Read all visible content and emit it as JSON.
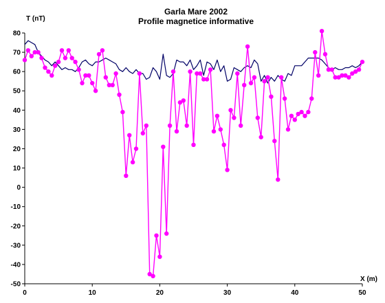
{
  "chart_data": {
    "type": "line",
    "title": "Garla Mare 2002",
    "subtitle": "Profile magnetice informative",
    "xlabel": "X (m)",
    "ylabel": "T (nT)",
    "xlim": [
      0,
      50
    ],
    "ylim": [
      -50,
      80
    ],
    "xticks": [
      0,
      10,
      20,
      30,
      40,
      50
    ],
    "yticks": [
      -50,
      -40,
      -30,
      -20,
      -10,
      0,
      10,
      20,
      30,
      40,
      50,
      60,
      70,
      80
    ],
    "grid": false,
    "colors": {
      "magenta": "#ff00ff",
      "navy": "#000066"
    },
    "series": [
      {
        "color": "#000066",
        "marker": "none",
        "points": [
          [
            0,
            74
          ],
          [
            0.5,
            76
          ],
          [
            1,
            75
          ],
          [
            1.5,
            74
          ],
          [
            2,
            70
          ],
          [
            2.5,
            68
          ],
          [
            3,
            66
          ],
          [
            3.5,
            65
          ],
          [
            4,
            63
          ],
          [
            4.5,
            65
          ],
          [
            5,
            63
          ],
          [
            5.5,
            61
          ],
          [
            6,
            62
          ],
          [
            6.5,
            61
          ],
          [
            7,
            61
          ],
          [
            7.5,
            60
          ],
          [
            8,
            62
          ],
          [
            8.5,
            65
          ],
          [
            9,
            66
          ],
          [
            9.5,
            64
          ],
          [
            10,
            63
          ],
          [
            10.5,
            65
          ],
          [
            11,
            65
          ],
          [
            11.5,
            66
          ],
          [
            12,
            67
          ],
          [
            12.5,
            66
          ],
          [
            13,
            65
          ],
          [
            13.5,
            64
          ],
          [
            14,
            61
          ],
          [
            14.5,
            60
          ],
          [
            15,
            62
          ],
          [
            15.5,
            60
          ],
          [
            16,
            59
          ],
          [
            16.5,
            61
          ],
          [
            17,
            59
          ],
          [
            17.5,
            59
          ],
          [
            18,
            56
          ],
          [
            18.5,
            57
          ],
          [
            19,
            62
          ],
          [
            19.5,
            60
          ],
          [
            20,
            56
          ],
          [
            20.5,
            69
          ],
          [
            21,
            58
          ],
          [
            21.5,
            57
          ],
          [
            22,
            59
          ],
          [
            22.5,
            66
          ],
          [
            23,
            65
          ],
          [
            23.5,
            65
          ],
          [
            24,
            63
          ],
          [
            24.5,
            66
          ],
          [
            25,
            61
          ],
          [
            25.5,
            63
          ],
          [
            26,
            66
          ],
          [
            26.5,
            58
          ],
          [
            27,
            65
          ],
          [
            27.5,
            64
          ],
          [
            28,
            61
          ],
          [
            28.5,
            66
          ],
          [
            29,
            60
          ],
          [
            29.5,
            63
          ],
          [
            30,
            55
          ],
          [
            30.5,
            56
          ],
          [
            31,
            62
          ],
          [
            31.5,
            61
          ],
          [
            32,
            60
          ],
          [
            32.5,
            62
          ],
          [
            33,
            63
          ],
          [
            33.5,
            62
          ],
          [
            34,
            66
          ],
          [
            34.5,
            64
          ],
          [
            35,
            55
          ],
          [
            35.5,
            58
          ],
          [
            36,
            54
          ],
          [
            36.5,
            57
          ],
          [
            37,
            55
          ],
          [
            37.5,
            58
          ],
          [
            38,
            56
          ],
          [
            38.5,
            55
          ],
          [
            39,
            59
          ],
          [
            39.5,
            58
          ],
          [
            40,
            63
          ],
          [
            40.5,
            63
          ],
          [
            41,
            63
          ],
          [
            41.5,
            65
          ],
          [
            42,
            67
          ],
          [
            42.5,
            67
          ],
          [
            43,
            67
          ],
          [
            43.5,
            67
          ],
          [
            44,
            66
          ],
          [
            44.5,
            64
          ],
          [
            45,
            62
          ],
          [
            45.5,
            61
          ],
          [
            46,
            62
          ],
          [
            46.5,
            61
          ],
          [
            47,
            61
          ],
          [
            47.5,
            62
          ],
          [
            48,
            62
          ],
          [
            48.5,
            63
          ],
          [
            49,
            62
          ],
          [
            49.5,
            63
          ],
          [
            50,
            65
          ]
        ]
      },
      {
        "color": "#ff00ff",
        "marker": "circle",
        "points": [
          [
            0,
            66
          ],
          [
            0.5,
            71
          ],
          [
            1,
            68
          ],
          [
            1.5,
            70
          ],
          [
            2,
            70
          ],
          [
            2.5,
            67
          ],
          [
            3,
            62
          ],
          [
            3.5,
            60
          ],
          [
            4,
            58
          ],
          [
            4.5,
            63
          ],
          [
            5,
            65
          ],
          [
            5.5,
            71
          ],
          [
            6,
            67
          ],
          [
            6.5,
            71
          ],
          [
            7,
            67
          ],
          [
            7.5,
            65
          ],
          [
            8,
            61
          ],
          [
            8.5,
            54
          ],
          [
            9,
            58
          ],
          [
            9.5,
            58
          ],
          [
            10,
            54
          ],
          [
            10.5,
            50
          ],
          [
            11,
            69
          ],
          [
            11.5,
            71
          ],
          [
            12,
            57
          ],
          [
            12.5,
            53
          ],
          [
            13,
            53
          ],
          [
            13.5,
            59
          ],
          [
            14,
            48
          ],
          [
            14.5,
            39
          ],
          [
            15,
            6
          ],
          [
            15.5,
            27
          ],
          [
            16,
            13
          ],
          [
            16.5,
            20
          ],
          [
            17,
            59
          ],
          [
            17.5,
            28
          ],
          [
            18,
            32
          ],
          [
            18.5,
            -45
          ],
          [
            19,
            -46
          ],
          [
            19.5,
            -25
          ],
          [
            20,
            -36
          ],
          [
            20.5,
            21
          ],
          [
            21,
            -24
          ],
          [
            21.5,
            32
          ],
          [
            22,
            60
          ],
          [
            22.5,
            29
          ],
          [
            23,
            44
          ],
          [
            23.5,
            45
          ],
          [
            24,
            32
          ],
          [
            24.5,
            60
          ],
          [
            25,
            22
          ],
          [
            25.5,
            59
          ],
          [
            26,
            59
          ],
          [
            26.5,
            56
          ],
          [
            27,
            56
          ],
          [
            27.5,
            61
          ],
          [
            28,
            29
          ],
          [
            28.5,
            37
          ],
          [
            29,
            30
          ],
          [
            29.5,
            22
          ],
          [
            30,
            9
          ],
          [
            30.5,
            40
          ],
          [
            31,
            36
          ],
          [
            31.5,
            59
          ],
          [
            32,
            32
          ],
          [
            32.5,
            53
          ],
          [
            33,
            73
          ],
          [
            33.5,
            54
          ],
          [
            34,
            57
          ],
          [
            34.5,
            36
          ],
          [
            35,
            26
          ],
          [
            35.5,
            55
          ],
          [
            36,
            57
          ],
          [
            36.5,
            47
          ],
          [
            37,
            24
          ],
          [
            37.5,
            4
          ],
          [
            38,
            57
          ],
          [
            38.5,
            46
          ],
          [
            39,
            30
          ],
          [
            39.5,
            37
          ],
          [
            40,
            35
          ],
          [
            40.5,
            38
          ],
          [
            41,
            39
          ],
          [
            41.5,
            37
          ],
          [
            42,
            39
          ],
          [
            42.5,
            46
          ],
          [
            43,
            70
          ],
          [
            43.5,
            58
          ],
          [
            44,
            81
          ],
          [
            44.5,
            69
          ],
          [
            45,
            61
          ],
          [
            45.5,
            61
          ],
          [
            46,
            57
          ],
          [
            46.5,
            57
          ],
          [
            47,
            58
          ],
          [
            47.5,
            58
          ],
          [
            48,
            57
          ],
          [
            48.5,
            59
          ],
          [
            49,
            60
          ],
          [
            49.5,
            61
          ],
          [
            50,
            65
          ]
        ]
      }
    ]
  }
}
